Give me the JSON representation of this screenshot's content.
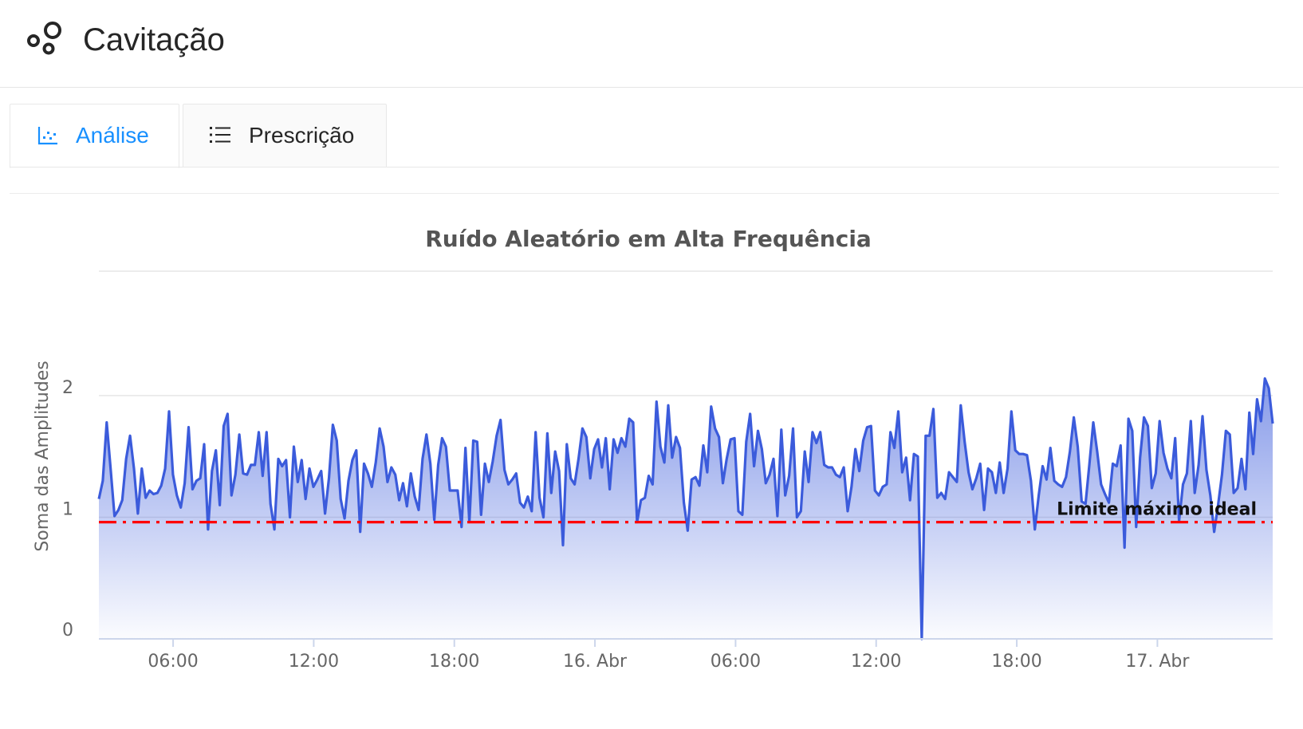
{
  "header": {
    "title": "Cavitação",
    "icon": "bubbles-icon"
  },
  "tabs": [
    {
      "label": "Análise",
      "icon": "scatter-chart-icon",
      "active": true
    },
    {
      "label": "Prescrição",
      "icon": "list-icon",
      "active": false
    }
  ],
  "colors": {
    "accent": "#1890ff",
    "series": "#3b5bdb",
    "threshold": "#ff0000"
  },
  "chart_data": {
    "type": "area",
    "title": "Ruído Aleatório em Alta Frequência",
    "ylabel": "Soma das Amplitudes",
    "xlabel": "",
    "ylim": [
      0,
      2.0
    ],
    "yticks": [
      0,
      1,
      2
    ],
    "grid": "horizontal",
    "legend": "none",
    "x_range": [
      "2024-04-15 02:50",
      "2024-04-17 04:55"
    ],
    "x_ticks": [
      {
        "label": "06:00",
        "hours": 6
      },
      {
        "label": "12:00",
        "hours": 12
      },
      {
        "label": "18:00",
        "hours": 18
      },
      {
        "label": "16. Abr",
        "hours": 24
      },
      {
        "label": "06:00",
        "hours": 30
      },
      {
        "label": "12:00",
        "hours": 36
      },
      {
        "label": "18:00",
        "hours": 42
      },
      {
        "label": "17. Abr",
        "hours": 48
      }
    ],
    "threshold": {
      "label": "Limite máximo ideal",
      "value": 0.96,
      "style": "dash-dot"
    },
    "series": [
      {
        "values": [
          1.15,
          1.3,
          1.78,
          1.4,
          1.01,
          1.06,
          1.14,
          1.48,
          1.67,
          1.4,
          1.03,
          1.4,
          1.16,
          1.22,
          1.19,
          1.2,
          1.26,
          1.4,
          1.87,
          1.35,
          1.18,
          1.08,
          1.28,
          1.74,
          1.23,
          1.3,
          1.32,
          1.6,
          0.9,
          1.38,
          1.55,
          1.1,
          1.75,
          1.85,
          1.18,
          1.35,
          1.68,
          1.36,
          1.35,
          1.43,
          1.43,
          1.7,
          1.34,
          1.7,
          1.11,
          0.9,
          1.48,
          1.42,
          1.47,
          1.0,
          1.58,
          1.29,
          1.47,
          1.15,
          1.4,
          1.25,
          1.31,
          1.38,
          1.03,
          1.32,
          1.76,
          1.63,
          1.15,
          0.99,
          1.3,
          1.47,
          1.55,
          0.88,
          1.44,
          1.36,
          1.25,
          1.45,
          1.73,
          1.58,
          1.29,
          1.41,
          1.35,
          1.14,
          1.28,
          1.09,
          1.36,
          1.17,
          1.06,
          1.48,
          1.68,
          1.44,
          0.98,
          1.43,
          1.65,
          1.58,
          1.22,
          1.22,
          1.22,
          0.92,
          1.57,
          0.96,
          1.63,
          1.62,
          1.02,
          1.44,
          1.29,
          1.46,
          1.67,
          1.8,
          1.39,
          1.27,
          1.31,
          1.36,
          1.12,
          1.08,
          1.17,
          1.05,
          1.7,
          1.16,
          1.0,
          1.69,
          1.2,
          1.54,
          1.38,
          0.77,
          1.6,
          1.32,
          1.27,
          1.48,
          1.73,
          1.66,
          1.32,
          1.56,
          1.64,
          1.41,
          1.65,
          1.23,
          1.64,
          1.53,
          1.65,
          1.58,
          1.81,
          1.78,
          0.96,
          1.14,
          1.16,
          1.34,
          1.27,
          1.95,
          1.58,
          1.45,
          1.92,
          1.49,
          1.66,
          1.57,
          1.12,
          0.89,
          1.31,
          1.33,
          1.26,
          1.59,
          1.37,
          1.91,
          1.73,
          1.66,
          1.28,
          1.48,
          1.64,
          1.65,
          1.05,
          1.02,
          1.62,
          1.85,
          1.42,
          1.71,
          1.56,
          1.28,
          1.35,
          1.48,
          1.01,
          1.72,
          1.18,
          1.34,
          1.73,
          1.0,
          1.05,
          1.54,
          1.29,
          1.7,
          1.61,
          1.7,
          1.43,
          1.41,
          1.41,
          1.35,
          1.33,
          1.41,
          1.05,
          1.25,
          1.56,
          1.38,
          1.63,
          1.74,
          1.75,
          1.22,
          1.18,
          1.25,
          1.27,
          1.7,
          1.57,
          1.87,
          1.37,
          1.49,
          1.14,
          1.52,
          1.5,
          0.0,
          1.67,
          1.67,
          1.89,
          1.16,
          1.2,
          1.15,
          1.37,
          1.33,
          1.29,
          1.92,
          1.62,
          1.37,
          1.23,
          1.32,
          1.44,
          1.06,
          1.4,
          1.37,
          1.2,
          1.45,
          1.2,
          1.4,
          1.87,
          1.55,
          1.52,
          1.52,
          1.51,
          1.3,
          0.9,
          1.18,
          1.42,
          1.31,
          1.57,
          1.3,
          1.27,
          1.25,
          1.33,
          1.54,
          1.82,
          1.58,
          1.13,
          1.11,
          1.44,
          1.78,
          1.54,
          1.27,
          1.19,
          1.12,
          1.44,
          1.42,
          1.59,
          0.75,
          1.81,
          1.71,
          0.92,
          1.49,
          1.82,
          1.75,
          1.24,
          1.36,
          1.79,
          1.53,
          1.4,
          1.32,
          1.65,
          0.97,
          1.27,
          1.36,
          1.79,
          1.2,
          1.43,
          1.83,
          1.39,
          1.18,
          0.88,
          1.1,
          1.35,
          1.71,
          1.68,
          1.2,
          1.24,
          1.48,
          1.23,
          1.86,
          1.52,
          1.97,
          1.79,
          2.14,
          2.06,
          1.77
        ]
      }
    ]
  }
}
